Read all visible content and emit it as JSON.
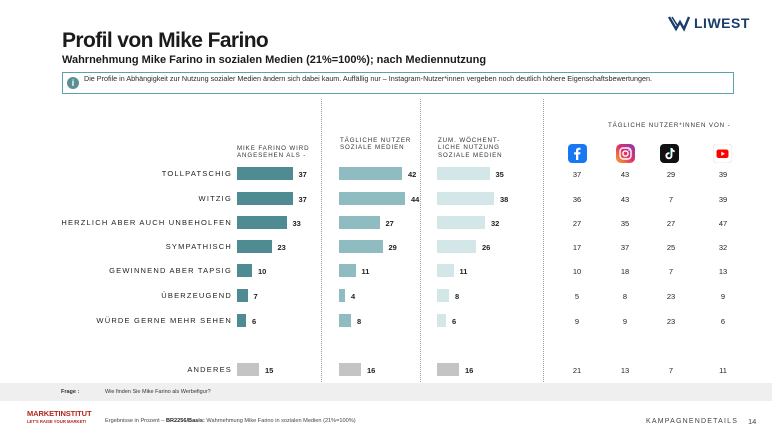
{
  "brand": "LIWEST",
  "title": "Profil von Mike Farino",
  "subtitle": "Wahrnehmung Mike Farino in sozialen Medien (21%=100%); nach Mediennutzung",
  "note": "Die Profile in Abhängigkeit zur Nutzung sozialer Medien ändern sich dabei kaum. Auffällig nur – Instagram-Nutzer*innen vergeben noch deutlich höhere Eigenschaftsbewertungen.",
  "platform_header": "TÄGLICHE NUTZER*INNEN VON -",
  "chart_data": {
    "type": "bar",
    "orientation": "horizontal",
    "categories": [
      "TOLLPATSCHIG",
      "WITZIG",
      "HERZLICH ABER AUCH UNBEHOLFEN",
      "SYMPATHISCH",
      "GEWINNEND ABER TAPSIG",
      "ÜBERZEUGEND",
      "WÜRDE GERNE MEHR SEHEN"
    ],
    "other_label": "ANDERES",
    "series": [
      {
        "name": "MIKE FARINO WIRD ANGESEHEN ALS -",
        "values": [
          37,
          37,
          33,
          23,
          10,
          7,
          6
        ],
        "other": 15,
        "color": "#4e8b92"
      },
      {
        "name": "TÄGLICHE NUTZER SOZIALE MEDIEN",
        "values": [
          42,
          44,
          27,
          29,
          11,
          4,
          8
        ],
        "other": 16,
        "color": "#8fbcc1"
      },
      {
        "name": "ZUM. WÖCHENT-LICHE NUTZUNG SOZIALE MEDIEN",
        "values": [
          35,
          38,
          32,
          26,
          11,
          8,
          6
        ],
        "other": 16,
        "color": "#d3e6e8"
      }
    ],
    "other_color": "#c4c4c4",
    "platforms": [
      {
        "name": "facebook-icon",
        "values": [
          37,
          36,
          27,
          17,
          10,
          5,
          9
        ],
        "other": 21
      },
      {
        "name": "instagram-icon",
        "values": [
          43,
          43,
          35,
          37,
          18,
          8,
          9
        ],
        "other": 13
      },
      {
        "name": "tiktok-icon",
        "values": [
          29,
          7,
          27,
          25,
          7,
          23,
          23
        ],
        "other": 7
      },
      {
        "name": "youtube-icon",
        "values": [
          39,
          39,
          47,
          32,
          13,
          9,
          6
        ],
        "other": 11
      }
    ]
  },
  "footer": {
    "frage_label": "Frage :",
    "frage_text": "Wie finden Sie Mike Farino als Werbefigur?",
    "logo_name": "MARKETINSTITUT",
    "logo_claim": "LET'S RAISE YOUR MARKET!",
    "footnote_prefix": "Ergebnisse in Prozent –",
    "footnote_code": "BR2256/Basis:",
    "footnote_rest": "Wahrnehmung Mike Farino in sozialen Medien (21%=100%)",
    "section": "KAMPAGNENDETAILS",
    "page": "14"
  }
}
